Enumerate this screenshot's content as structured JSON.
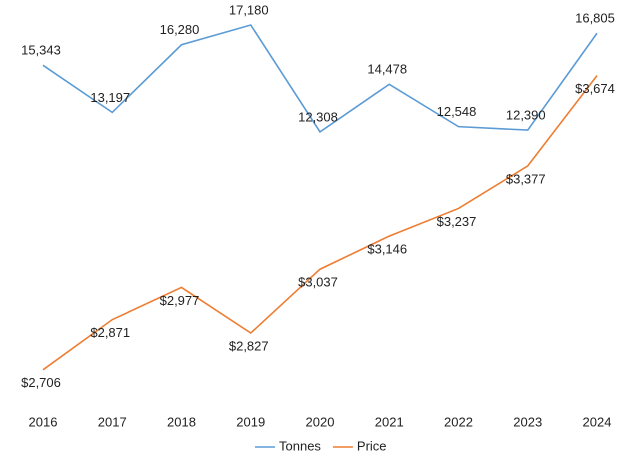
{
  "chart_data": {
    "type": "line",
    "categories": [
      2016,
      2017,
      2018,
      2019,
      2020,
      2021,
      2022,
      2023,
      2024
    ],
    "series": [
      {
        "name": "Tonnes",
        "color": "#5b9bd5",
        "values": [
          15343,
          13197,
          16280,
          17180,
          12308,
          14478,
          12548,
          12390,
          16805
        ],
        "value_labels": [
          "15,343",
          "13,197",
          "16,280",
          "17,180",
          "12,308",
          "14,478",
          "12,548",
          "12,390",
          "16,805"
        ]
      },
      {
        "name": "Price",
        "color": "#ed7d31",
        "axis": "y2",
        "values": [
          2706,
          2871,
          2977,
          2827,
          3037,
          3146,
          3237,
          3377,
          3674
        ],
        "value_labels": [
          "$2,706",
          "$2,871",
          "$2,977",
          "$2,827",
          "$3,037",
          "$3,146",
          "$3,237",
          "$3,377",
          "$3,674"
        ]
      }
    ],
    "ylim": [
      0,
      18000
    ],
    "y2lim": [
      2600,
      3900
    ],
    "legend": "bottom"
  }
}
